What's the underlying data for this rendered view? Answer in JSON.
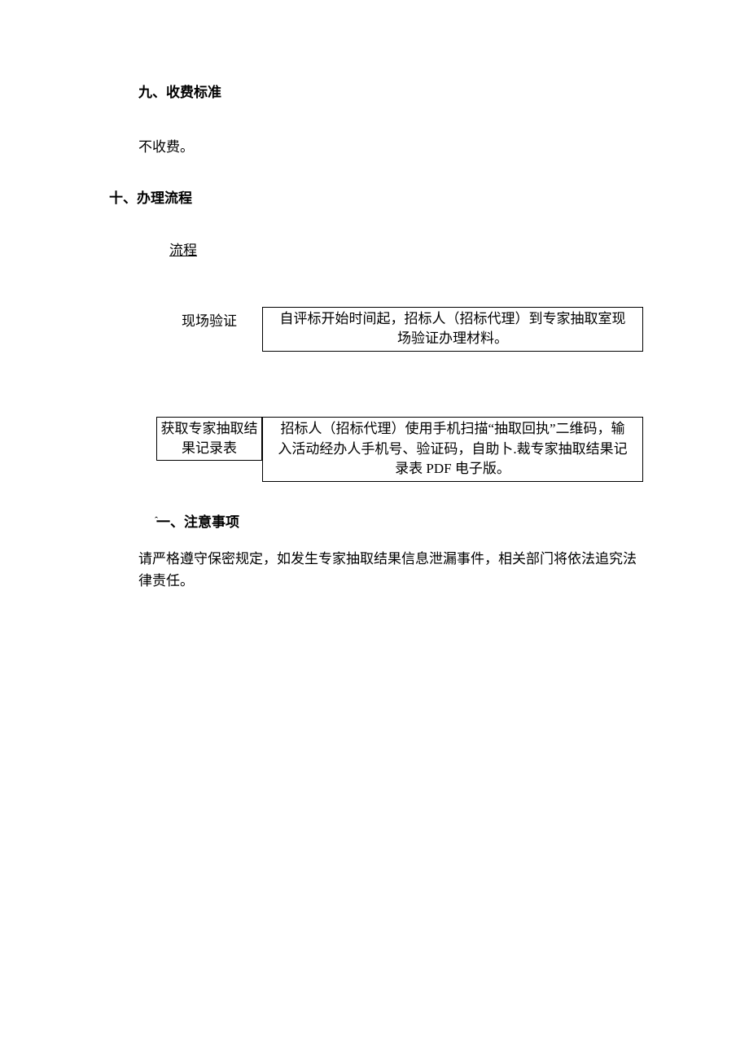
{
  "section9": {
    "heading": "九、收费标准",
    "body": "不收费。"
  },
  "section10": {
    "heading": "十、办理流程",
    "flow_title": "流程",
    "steps": [
      {
        "label": "现场验证",
        "desc": "自评标开始时间起，招标人（招标代理）到专家抽取室现场验证办理材料。"
      },
      {
        "label": "获取专家抽取结果记录表",
        "desc": "招标人（招标代理）使用手机扫描“抽取回执”二维码，输入活动经办人手机号、验证码，自助卜.裁专家抽取结果记录表 PDF 电子版。"
      }
    ]
  },
  "section11": {
    "caret": "ˆ",
    "heading": "一、注意事项",
    "body": "请严格遵守保密规定，如发生专家抽取结果信息泄漏事件，相关部门将依法追究法律责任。"
  }
}
